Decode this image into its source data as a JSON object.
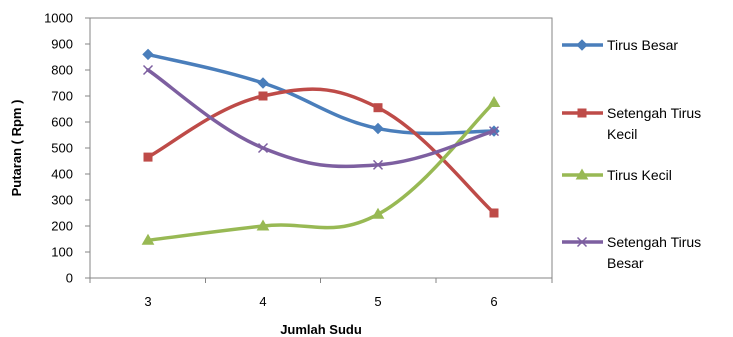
{
  "chart_data": {
    "type": "line",
    "title": "",
    "xlabel": "Jumlah Sudu",
    "ylabel": "Putaran ( Rpm )",
    "categories": [
      "3",
      "4",
      "5",
      "6"
    ],
    "x": [
      3,
      4,
      5,
      6
    ],
    "ylim": [
      0,
      1000
    ],
    "yticks": [
      0,
      100,
      200,
      300,
      400,
      500,
      600,
      700,
      800,
      900,
      1000
    ],
    "grid": false,
    "smooth": true,
    "legend_position": "right",
    "series": [
      {
        "name": "Tirus Besar",
        "legend_lines": [
          "Tirus Besar"
        ],
        "color": "#4a7ebb",
        "marker": "diamond",
        "values": [
          860,
          750,
          575,
          565
        ]
      },
      {
        "name": "Setengah Tirus Kecil",
        "legend_lines": [
          "Setengah Tirus",
          "Kecil"
        ],
        "color": "#be4b48",
        "marker": "square",
        "values": [
          465,
          700,
          655,
          250
        ]
      },
      {
        "name": "Tirus Kecil",
        "legend_lines": [
          "Tirus Kecil"
        ],
        "color": "#98b954",
        "marker": "triangle",
        "values": [
          145,
          200,
          245,
          675
        ]
      },
      {
        "name": "Setengah Tirus Besar",
        "legend_lines": [
          "Setengah Tirus",
          "Besar"
        ],
        "color": "#7d5fa0",
        "marker": "x",
        "values": [
          800,
          500,
          435,
          565
        ]
      }
    ]
  }
}
